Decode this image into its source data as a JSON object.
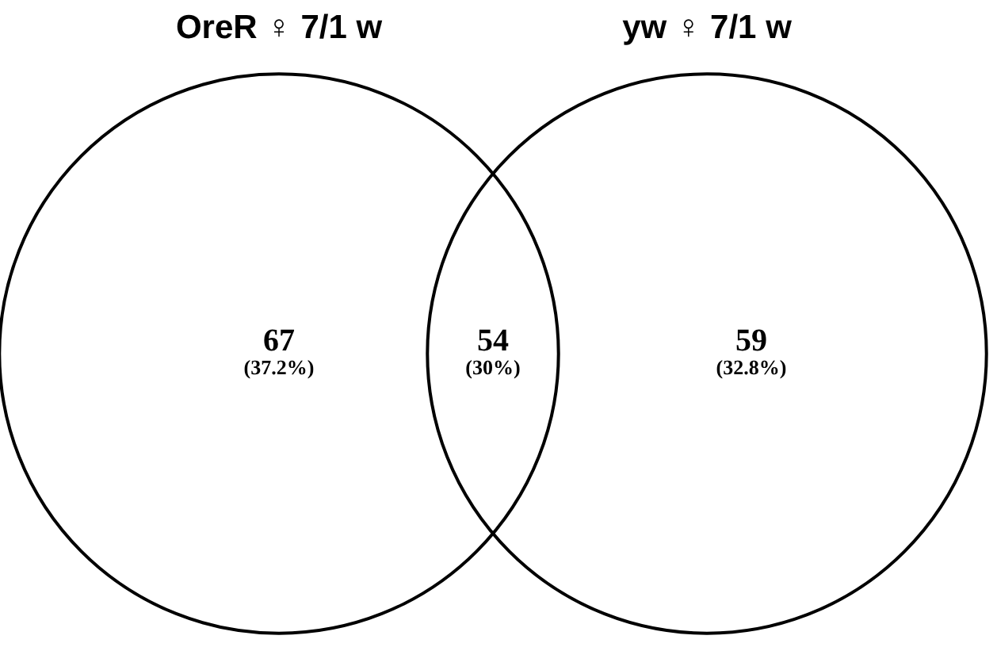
{
  "chart_data": {
    "type": "other",
    "categories": [
      null,
      null,
      null
    ],
    "values": [
      67,
      54,
      59
    ],
    "data_labels": true,
    "annotations": [
      "OreR ♀ 7/1  w",
      "yw ♀ 7/1  w",
      "(37.2%)",
      "(30%)",
      "(32.8%)"
    ]
  }
}
